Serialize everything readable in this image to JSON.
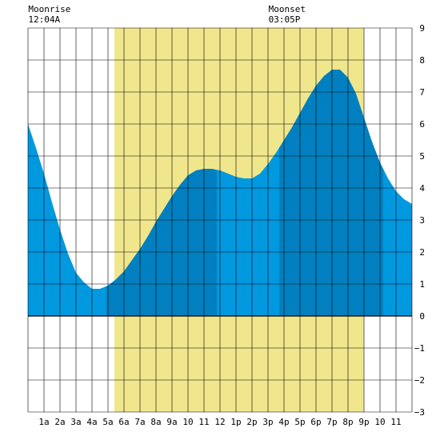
{
  "chart_data": {
    "type": "area",
    "title": "",
    "xlabel": "",
    "ylabel": "",
    "x_ticks": [
      "1a",
      "2a",
      "3a",
      "4a",
      "5a",
      "6a",
      "7a",
      "8a",
      "9a",
      "10",
      "11",
      "12",
      "1p",
      "2p",
      "3p",
      "4p",
      "5p",
      "6p",
      "7p",
      "8p",
      "9p",
      "10",
      "11"
    ],
    "xlim": [
      0,
      24
    ],
    "ylim": [
      -3,
      9
    ],
    "y_ticks": [
      9,
      8,
      7,
      6,
      5,
      4,
      3,
      2,
      1,
      0,
      -1,
      -2,
      -3
    ],
    "grid": true,
    "daylight_hours": [
      5.4,
      21
    ],
    "moon_events": [
      {
        "label": "Moonrise",
        "time": "12:04A",
        "hour": 0.07
      },
      {
        "label": "Moonset",
        "time": "03:05P",
        "hour": 15.08
      }
    ],
    "series": [
      {
        "x": [
          0,
          0.5,
          1,
          1.5,
          2,
          2.5,
          3,
          3.5,
          4,
          4.5,
          5,
          5.5,
          6,
          6.5,
          7,
          7.5,
          8,
          8.5,
          9,
          9.5,
          10,
          10.5,
          11,
          11.5,
          12,
          12.5,
          13,
          13.5,
          14,
          14.5,
          15,
          15.5,
          16,
          16.5,
          17,
          17.5,
          18,
          18.5,
          19,
          19.5,
          20,
          20.5,
          21,
          21.5,
          22,
          22.5,
          23,
          23.5,
          24
        ],
        "values": [
          6.0,
          5.25,
          4.45,
          3.55,
          2.7,
          1.95,
          1.35,
          1.05,
          0.85,
          0.85,
          0.95,
          1.15,
          1.4,
          1.75,
          2.1,
          2.5,
          2.95,
          3.35,
          3.75,
          4.1,
          4.4,
          4.55,
          4.6,
          4.6,
          4.55,
          4.45,
          4.35,
          4.3,
          4.3,
          4.45,
          4.75,
          5.1,
          5.5,
          5.9,
          6.35,
          6.8,
          7.2,
          7.5,
          7.7,
          7.7,
          7.45,
          6.95,
          6.2,
          5.45,
          4.8,
          4.3,
          3.9,
          3.65,
          3.5
        ]
      }
    ],
    "tide_phases": [
      {
        "from": 0,
        "to": 4.9,
        "shade": "light"
      },
      {
        "from": 4.9,
        "to": 11.8,
        "shade": "dark"
      },
      {
        "from": 11.8,
        "to": 15.7,
        "shade": "light"
      },
      {
        "from": 15.7,
        "to": 22.2,
        "shade": "dark"
      },
      {
        "from": 22.2,
        "to": 24,
        "shade": "light"
      }
    ],
    "colors": {
      "daylight": "#f0e68c",
      "water_light": "#0099e0",
      "water_dark": "#0080c0",
      "grid": "#000000",
      "background": "#ffffff"
    }
  }
}
